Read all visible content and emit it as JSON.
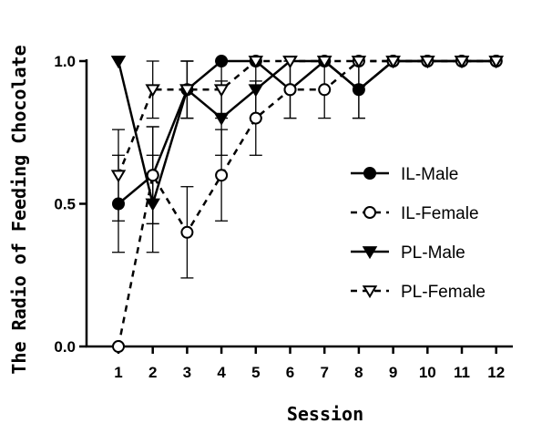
{
  "chart_data": {
    "type": "line",
    "xlabel": "Session",
    "ylabel": "The Radio of Feeding Chocolate",
    "x": [
      1,
      2,
      3,
      4,
      5,
      6,
      7,
      8,
      9,
      10,
      11,
      12
    ],
    "x_ticks": [
      "1",
      "2",
      "3",
      "4",
      "5",
      "6",
      "7",
      "8",
      "9",
      "10",
      "11",
      "12"
    ],
    "y_ticks": [
      "0.0",
      "0.5",
      "1.0"
    ],
    "ylim": [
      0,
      1.0
    ],
    "grid": false,
    "legend_position": "right",
    "series": [
      {
        "name": "IL-Male",
        "marker": "filled-circle",
        "line": "solid",
        "values": [
          0.5,
          0.6,
          0.9,
          1.0,
          1.0,
          0.9,
          1.0,
          0.9,
          1.0,
          1.0,
          1.0,
          1.0
        ],
        "errors": [
          0.17,
          0.17,
          0.1,
          0,
          0,
          0.1,
          0,
          0.1,
          0,
          0,
          0,
          0
        ]
      },
      {
        "name": "IL-Female",
        "marker": "open-circle",
        "line": "dashed",
        "values": [
          0.0,
          0.6,
          0.4,
          0.6,
          0.8,
          0.9,
          0.9,
          1.0,
          1.0,
          1.0,
          1.0,
          1.0
        ],
        "errors": [
          0,
          0.17,
          0.16,
          0.16,
          0.13,
          0.1,
          0.1,
          0,
          0,
          0,
          0,
          0
        ]
      },
      {
        "name": "PL-Male",
        "marker": "filled-triangle-down",
        "line": "solid",
        "values": [
          1.0,
          0.5,
          0.9,
          0.8,
          0.9,
          1.0,
          1.0,
          0.9,
          1.0,
          1.0,
          1.0,
          1.0
        ],
        "errors": [
          0,
          0.17,
          0.1,
          0.13,
          0.1,
          0,
          0,
          0.1,
          0,
          0,
          0,
          0
        ]
      },
      {
        "name": "PL-Female",
        "marker": "open-triangle-down",
        "line": "dashed",
        "values": [
          0.6,
          0.9,
          0.9,
          0.9,
          1.0,
          1.0,
          1.0,
          1.0,
          1.0,
          1.0,
          1.0,
          1.0
        ],
        "errors": [
          0.16,
          0.1,
          0.1,
          0.1,
          0,
          0,
          0,
          0,
          0,
          0,
          0,
          0
        ]
      }
    ]
  }
}
